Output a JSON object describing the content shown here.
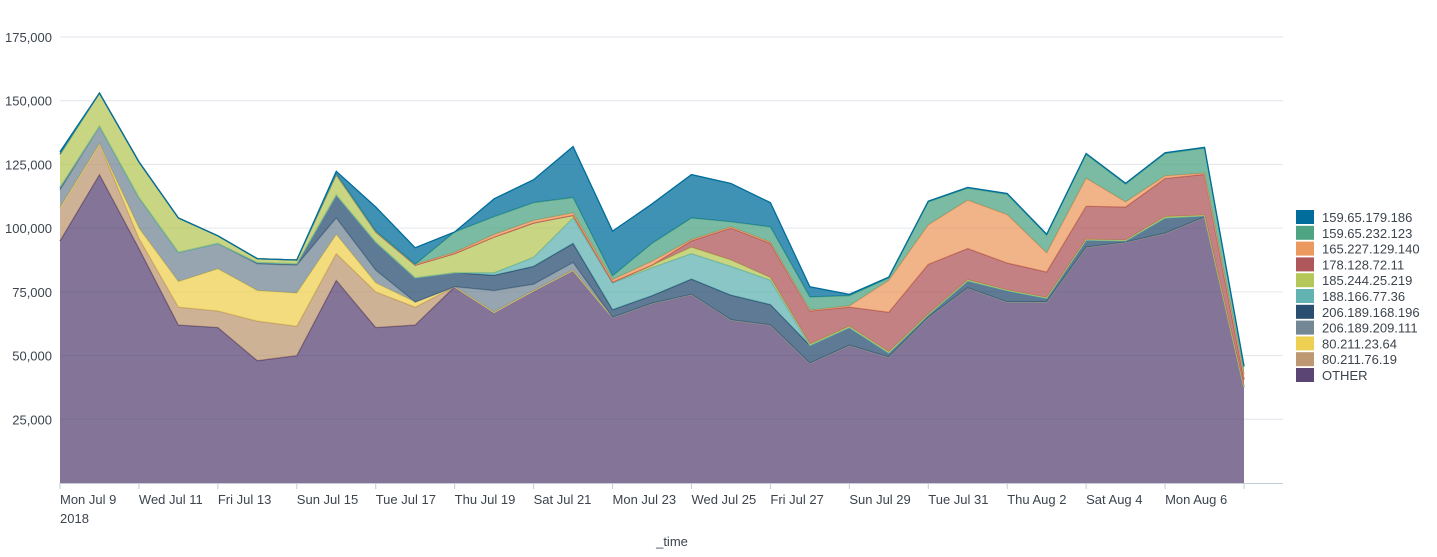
{
  "chart_data": {
    "type": "area",
    "stacked": true,
    "title": "",
    "xlabel": "_time",
    "ylabel": "",
    "ylim": [
      0,
      175000
    ],
    "y_ticks": [
      "25,000",
      "50,000",
      "75,000",
      "100,000",
      "125,000",
      "150,000",
      "175,000"
    ],
    "x_tick_labels": [
      "Mon Jul 9",
      "Wed Jul 11",
      "Fri Jul 13",
      "Sun Jul 15",
      "Tue Jul 17",
      "Thu Jul 19",
      "Sat Jul 21",
      "Mon Jul 23",
      "Wed Jul 25",
      "Fri Jul 27",
      "Sun Jul 29",
      "Tue Jul 31",
      "Thu Aug 2",
      "Sat Aug 4",
      "Mon Aug 6"
    ],
    "x_year_label": "2018",
    "x": [
      "2018-07-09",
      "2018-07-10",
      "2018-07-11",
      "2018-07-12",
      "2018-07-13",
      "2018-07-14",
      "2018-07-15",
      "2018-07-16",
      "2018-07-17",
      "2018-07-18",
      "2018-07-19",
      "2018-07-20",
      "2018-07-21",
      "2018-07-22",
      "2018-07-23",
      "2018-07-24",
      "2018-07-25",
      "2018-07-26",
      "2018-07-27",
      "2018-07-28",
      "2018-07-29",
      "2018-07-30",
      "2018-07-31",
      "2018-08-01",
      "2018-08-02",
      "2018-08-03",
      "2018-08-04",
      "2018-08-05",
      "2018-08-06",
      "2018-08-07",
      "2018-08-08"
    ],
    "grid": true,
    "legend_position": "right",
    "series": [
      {
        "name": "OTHER",
        "color": "#5a4575",
        "values": [
          95000,
          121000,
          92000,
          62000,
          61000,
          48000,
          50000,
          79500,
          61000,
          62000,
          77000,
          67000,
          75500,
          83500,
          65000,
          70500,
          74000,
          64000,
          62000,
          47000,
          54000,
          49400,
          65000,
          76500,
          71000,
          71000,
          92500,
          94500,
          98000,
          104300,
          37600
        ]
      },
      {
        "name": "80.211.76.19",
        "color": "#bd9872",
        "values": [
          13000,
          12000,
          4000,
          7000,
          6500,
          15500,
          11500,
          10500,
          14000,
          7000,
          0,
          0,
          0,
          0,
          0,
          0,
          0,
          0,
          0,
          0,
          0,
          0,
          0,
          0,
          0,
          0,
          0,
          0,
          0,
          0,
          0
        ]
      },
      {
        "name": "80.211.23.64",
        "color": "#edd051",
        "values": [
          0,
          0,
          4000,
          10000,
          16500,
          12000,
          13000,
          7500,
          3500,
          2000,
          0,
          0,
          0,
          0,
          0,
          0,
          0,
          0,
          0,
          0,
          0,
          0,
          0,
          0,
          0,
          0,
          0,
          0,
          0,
          0,
          0
        ]
      },
      {
        "name": "206.189.209.111",
        "color": "#738795",
        "values": [
          7000,
          7000,
          12000,
          11500,
          10000,
          10500,
          11000,
          6500,
          5000,
          0,
          0,
          8500,
          2500,
          3000,
          0,
          0,
          0,
          0,
          0,
          0,
          0,
          0,
          0,
          0,
          0,
          0,
          0,
          0,
          0,
          0,
          0
        ]
      },
      {
        "name": "206.189.168.196",
        "color": "#294e70",
        "values": [
          1000,
          0,
          0,
          0,
          0,
          500,
          500,
          9000,
          11000,
          9500,
          5500,
          6000,
          7000,
          7500,
          3000,
          3000,
          6000,
          9700,
          8000,
          7000,
          7000,
          1600,
          1000,
          2800,
          4500,
          1500,
          2800,
          500,
          6000,
          500,
          0
        ]
      },
      {
        "name": "188.166.77.36",
        "color": "#62b3b2",
        "values": [
          0,
          0,
          0,
          0,
          0,
          0,
          0,
          0,
          0,
          0,
          0,
          1000,
          3600,
          10000,
          10500,
          11000,
          10000,
          11300,
          9600,
          0,
          0,
          0,
          0,
          0,
          0,
          0,
          0,
          0,
          0,
          0,
          0
        ]
      },
      {
        "name": "185.244.25.219",
        "color": "#b6c75a",
        "values": [
          13000,
          13000,
          14000,
          13500,
          3000,
          1500,
          1500,
          8000,
          4000,
          5000,
          7500,
          14000,
          13400,
          1000,
          300,
          1000,
          2500,
          2500,
          1000,
          500,
          500,
          500,
          300,
          400,
          300,
          300,
          300,
          300,
          500,
          300,
          0
        ]
      },
      {
        "name": "178.128.72.11",
        "color": "#af575a",
        "values": [
          0,
          0,
          0,
          0,
          0,
          0,
          0,
          0,
          0,
          0,
          0,
          0,
          0,
          0,
          0,
          0,
          2500,
          12500,
          13400,
          13000,
          7500,
          15500,
          19500,
          12300,
          10500,
          10000,
          13000,
          13000,
          15000,
          16000,
          3000
        ]
      },
      {
        "name": "165.227.129.140",
        "color": "#ec9960",
        "values": [
          0,
          0,
          0,
          0,
          0,
          0,
          0,
          300,
          300,
          300,
          500,
          1000,
          1000,
          1000,
          1000,
          1500,
          500,
          500,
          500,
          300,
          500,
          12500,
          15500,
          19000,
          19000,
          7500,
          11000,
          2000,
          1000,
          500,
          2000
        ]
      },
      {
        "name": "159.65.232.123",
        "color": "#4fa484",
        "values": [
          0,
          0,
          0,
          0,
          0,
          0,
          0,
          0,
          0,
          0,
          8000,
          7000,
          7000,
          6000,
          1500,
          7000,
          8500,
          2000,
          6000,
          5200,
          4000,
          1000,
          9000,
          4700,
          8000,
          7000,
          9400,
          7000,
          8800,
          9800,
          3000
        ]
      },
      {
        "name": "159.65.179.186",
        "color": "#006d9c",
        "values": [
          1000,
          0,
          0,
          0,
          0,
          0,
          0,
          1000,
          9500,
          6500,
          0,
          7000,
          9000,
          20000,
          17500,
          15500,
          17000,
          15000,
          9500,
          4000,
          500,
          300,
          300,
          300,
          300,
          300,
          300,
          300,
          300,
          300,
          300
        ]
      }
    ]
  }
}
